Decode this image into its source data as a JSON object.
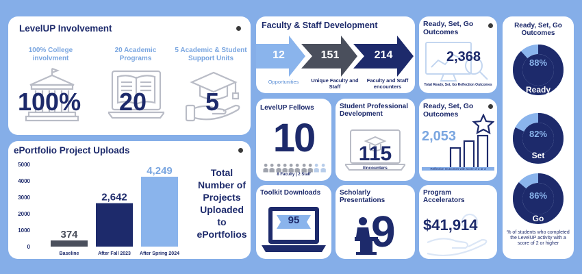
{
  "involvement": {
    "title": "LevelUP Involvement",
    "college_label": "100% College involvment",
    "college_value": "100%",
    "programs_label": "20 Academic Programs",
    "programs_value": "20",
    "units_label": "5 Academic & Student Support Units",
    "units_value": "5",
    "icons": [
      "university-building-icon",
      "open-book-laptop-icon",
      "graduation-cap-hand-icon"
    ]
  },
  "faculty": {
    "title": "Faculty & Staff Development",
    "arrows": [
      {
        "value": "12",
        "label": "Opportunities",
        "color": "#8ab4ec"
      },
      {
        "value": "151",
        "label": "Unique Faculty and Staff",
        "color": "#4a4f5c"
      },
      {
        "value": "214",
        "label": "Faculty and Staff encounters",
        "color": "#1d2a6b"
      }
    ]
  },
  "rsg_top": {
    "title": "Ready, Set, Go Outcomes",
    "value": "2,368",
    "caption": "Total Ready, Set, Go Reflection Outcomes"
  },
  "rsg_right": {
    "title": "Ready, Set, Go Outcomes",
    "rings": [
      {
        "percent": 88,
        "value": "88%",
        "label": "Ready"
      },
      {
        "percent": 82,
        "value": "82%",
        "label": "Set"
      },
      {
        "percent": 86,
        "value": "86%",
        "label": "Go"
      }
    ],
    "footnote": "% of students who completed the LevelUP activity with a score of 2 or higher"
  },
  "fellows": {
    "title": "LevelUP Fellows",
    "value": "10",
    "caption": "8 Faculty | 2 Staff",
    "faculty_count": 8,
    "staff_count": 2
  },
  "student_pd": {
    "title": "Student Professional Development",
    "value": "115",
    "caption": "Encounters"
  },
  "rsg_mid": {
    "title": "Ready, Set, Go Outcomes",
    "value": "2,053",
    "caption": "Reflection Outcomes with score of 2 or 3"
  },
  "toolkit": {
    "title": "Toolkit Downloads",
    "value": "95"
  },
  "scholarly": {
    "title": "Scholarly Presentations",
    "value": "9"
  },
  "accelerators": {
    "title": "Program Accelerators",
    "value": "$41,914"
  },
  "eportfolio": {
    "title": "ePortfolio Project Uploads",
    "side_text": "Total Number of Projects Uploaded to ePortfolios"
  },
  "chart_data": {
    "type": "bar",
    "title": "ePortfolio Project Uploads",
    "categories": [
      "Baseline",
      "After Fall 2023",
      "After Spring 2024"
    ],
    "values": [
      374,
      2642,
      4249
    ],
    "value_labels": [
      "374",
      "2,642",
      "4,249"
    ],
    "colors": [
      "#4a4f5c",
      "#1d2a6b",
      "#8ab4ec"
    ],
    "label_colors": [
      "#4a4f5c",
      "#1d2a6b",
      "#7aa6e0"
    ],
    "yticks": [
      "0",
      "1000",
      "2000",
      "3000",
      "4000",
      "5000"
    ],
    "ylim": [
      0,
      5000
    ],
    "grid": false
  }
}
